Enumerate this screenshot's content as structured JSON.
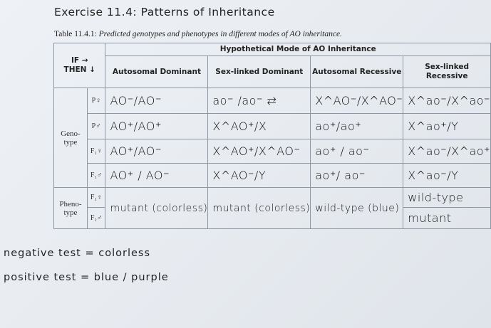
{
  "title": "Exercise 11.4: Patterns of Inheritance",
  "caption": {
    "label": "Table 11.4.1:",
    "text": "Predicted genotypes and phenotypes in different modes of AO inheritance."
  },
  "table": {
    "corner": "IF →\nTHEN ↓",
    "group_header": "Hypothetical Mode of AO Inheritance",
    "columns": [
      "Autosomal Dominant",
      "Sex-linked Dominant",
      "Autosomal Recessive",
      "Sex-linked Recessive"
    ],
    "genotype_label": "Geno-\ntype",
    "phenotype_label": "Pheno-\ntype",
    "genotype_rows": [
      {
        "sub": "P♀",
        "cells": [
          "AO⁻/AO⁻",
          "ao⁻ /ao⁻ ⇆",
          "X^AO⁻/X^AO⁻",
          "X^ao⁻/X^ao⁻"
        ]
      },
      {
        "sub": "P♂",
        "cells": [
          "AO⁺/AO⁺",
          "X^AO⁺/X",
          "ao⁺/ao⁺",
          "X^ao⁺/Y"
        ]
      },
      {
        "sub": "F₁♀",
        "cells": [
          "AO⁺/AO⁻",
          "X^AO⁺/X^AO⁻",
          "ao⁺ / ao⁻",
          "X^ao⁻/X^ao⁺"
        ]
      },
      {
        "sub": "F₁♂",
        "cells": [
          "AO⁺ / AO⁻",
          "X^AO⁻/Y",
          "ao⁺/ ao⁻",
          "X^ao⁻/Y"
        ]
      }
    ],
    "phenotype_rows": [
      {
        "sub": "F₁♀",
        "cells": [
          "",
          "",
          "",
          "wild-type"
        ]
      },
      {
        "sub": "F₁♂",
        "cells": [
          "",
          "",
          "",
          "mutant"
        ]
      }
    ],
    "phenotype_merged": [
      "mutant (colorless)",
      "mutant (colorless)",
      "wild-type (blue)"
    ]
  },
  "notes": [
    "negative test = colorless",
    "positive test = blue / purple"
  ]
}
